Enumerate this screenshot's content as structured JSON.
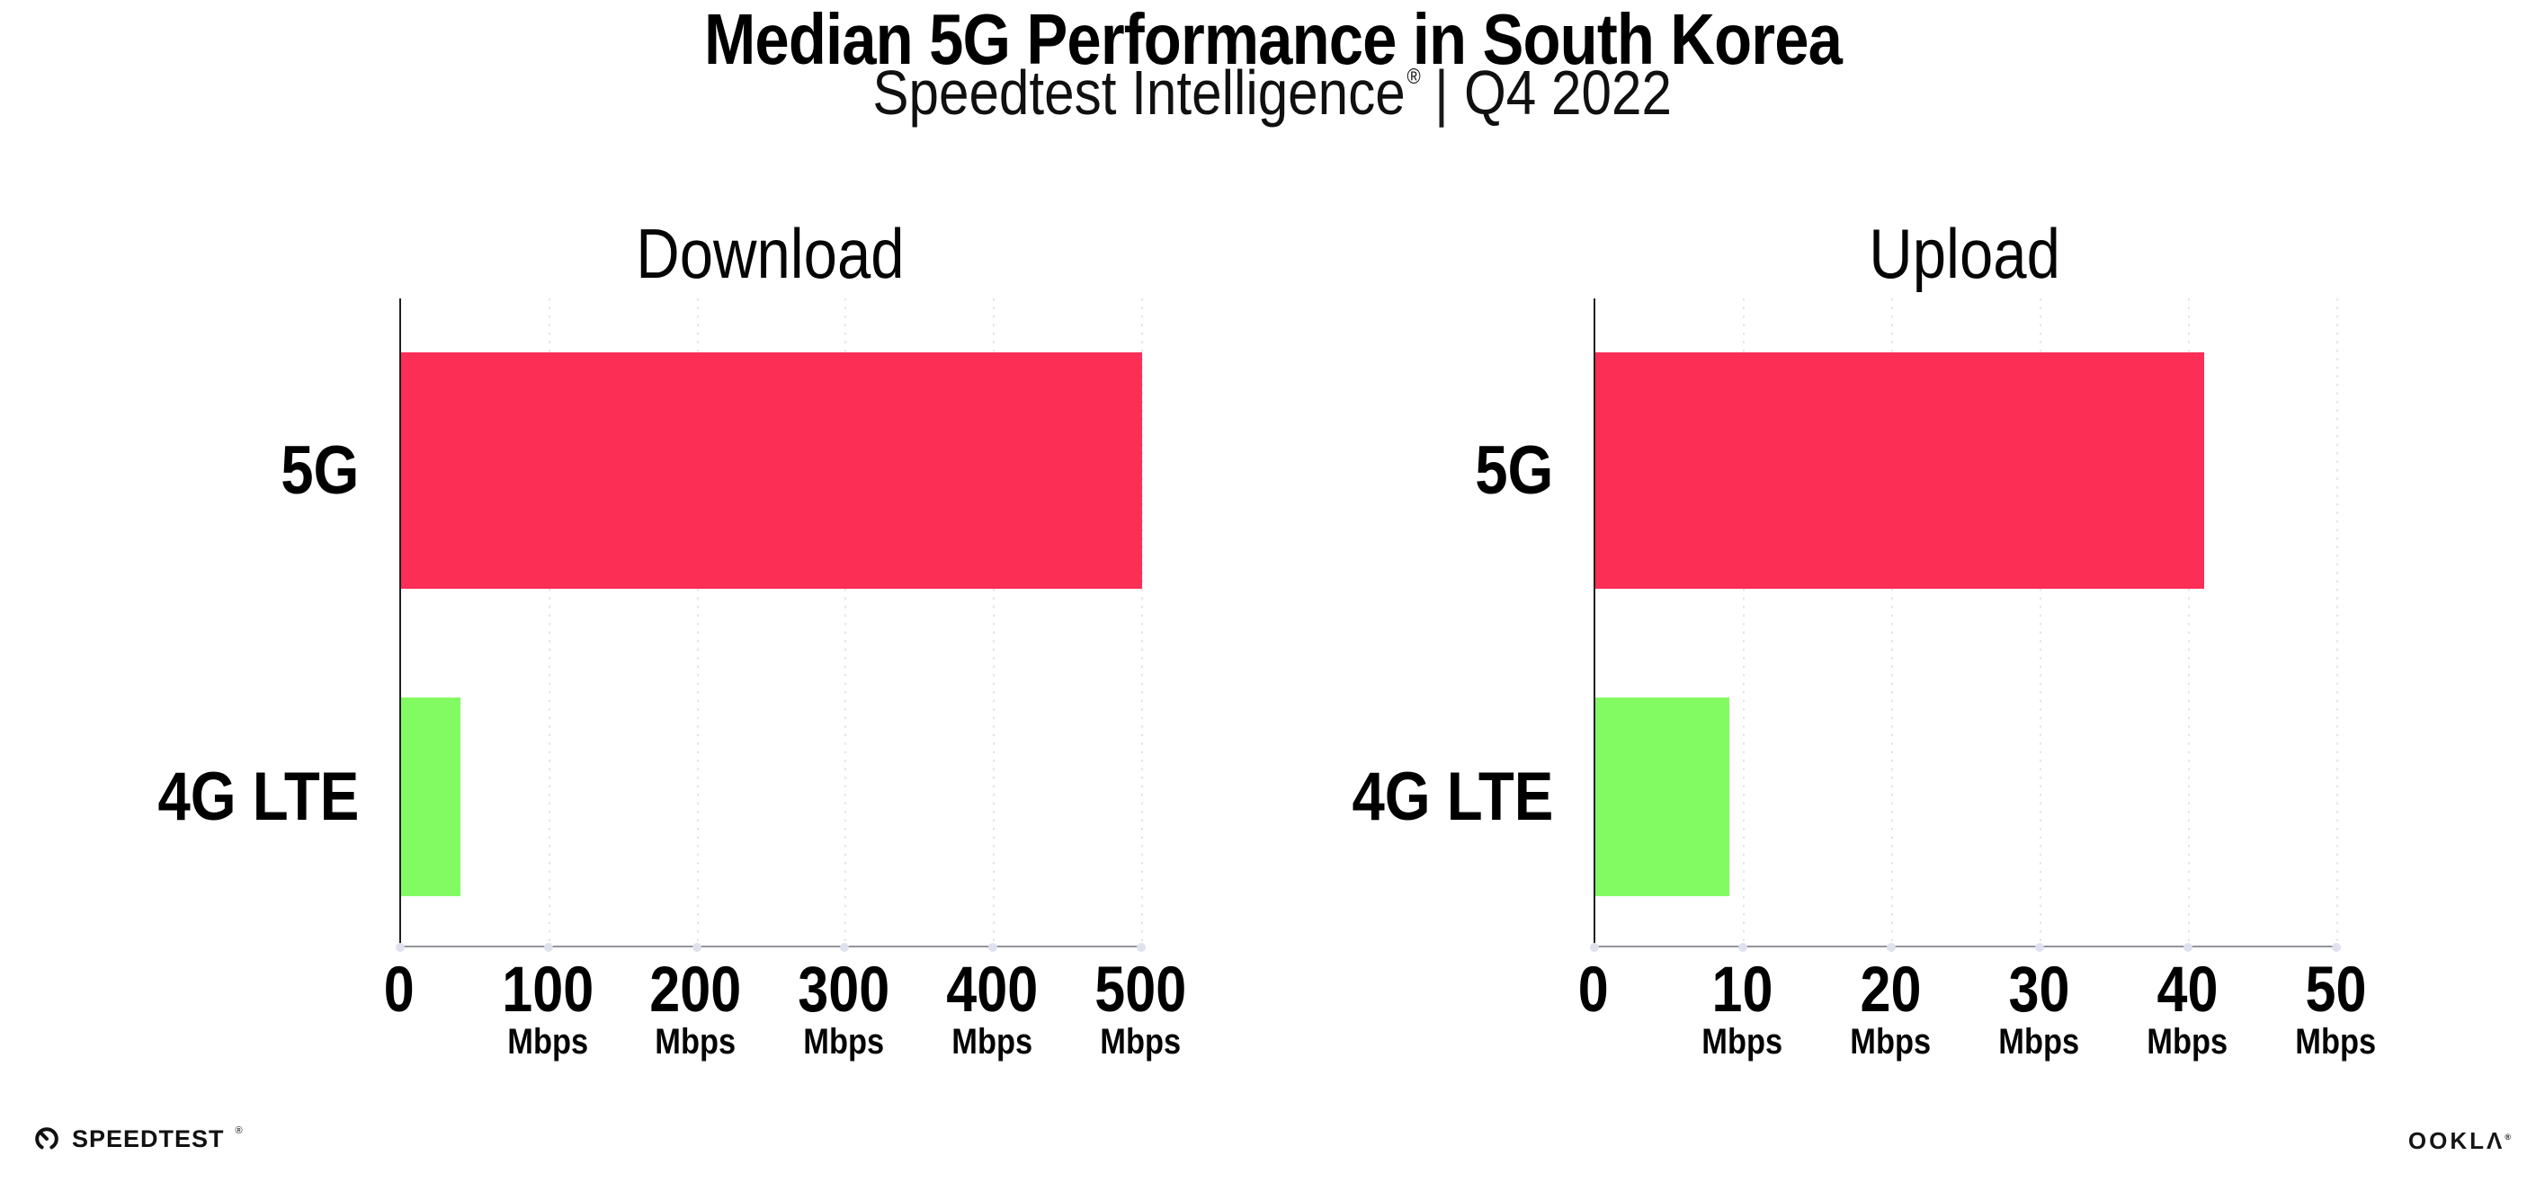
{
  "header": {
    "title": "Median 5G Performance in South Korea",
    "subtitle_brand": "Speedtest Intelligence",
    "subtitle_reg": "®",
    "subtitle_separator": "|",
    "subtitle_period": "Q4 2022"
  },
  "chart_data": [
    {
      "type": "bar",
      "orientation": "horizontal",
      "title": "Download",
      "categories": [
        "5G",
        "4G LTE"
      ],
      "values": [
        500,
        40
      ],
      "value_unit": "Mbps",
      "xlim": [
        0,
        500
      ],
      "xticks": [
        0,
        100,
        200,
        300,
        400,
        500
      ],
      "tick_unit": "Mbps",
      "bar_colors": [
        "#fc2e56",
        "#82fb63"
      ],
      "grid": "vertical-dotted",
      "legend": "none"
    },
    {
      "type": "bar",
      "orientation": "horizontal",
      "title": "Upload",
      "categories": [
        "5G",
        "4G LTE"
      ],
      "values": [
        41,
        9
      ],
      "value_unit": "Mbps",
      "xlim": [
        0,
        50
      ],
      "xticks": [
        0,
        10,
        20,
        30,
        40,
        50
      ],
      "tick_unit": "Mbps",
      "bar_colors": [
        "#fc2e56",
        "#82fb63"
      ],
      "grid": "vertical-dotted",
      "legend": "none"
    }
  ],
  "colors": {
    "bar_5g": "#fc2e56",
    "bar_4g_lte": "#82fb63",
    "gridline": "#e3e3ef",
    "axis_left": "#202020",
    "axis_bottom": "#93939c",
    "tick_dot": "#e0e1ee",
    "text": "#000000"
  },
  "footer": {
    "speedtest_label": "SPEEDTEST",
    "speedtest_reg": "®",
    "speedtest_icon": "speedometer-gauge-icon",
    "ookla_label": "OOKLΛ",
    "ookla_reg": "®"
  }
}
